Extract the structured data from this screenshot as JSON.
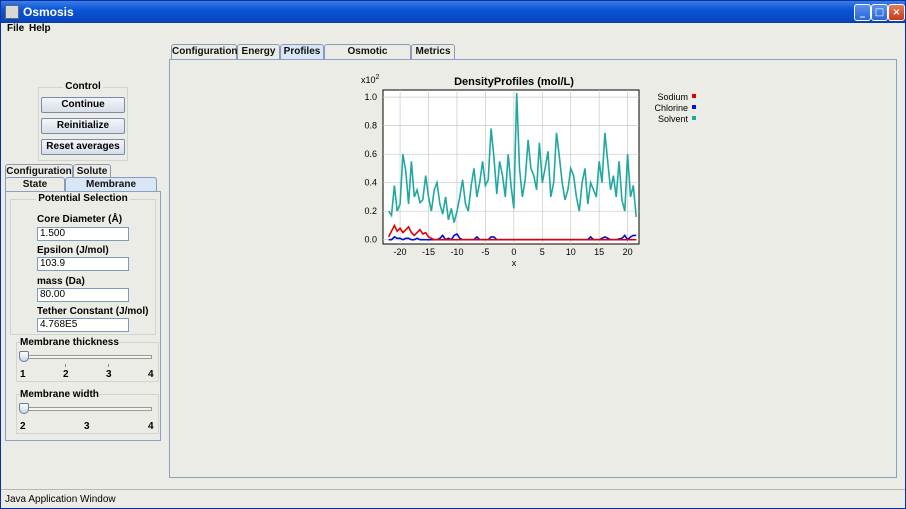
{
  "window": {
    "title": "Osmosis"
  },
  "menu": {
    "file": "File",
    "help": "Help"
  },
  "main_tabs": [
    "Configuration",
    "Energy",
    "Profiles",
    "Osmotic Pressure",
    "Metrics"
  ],
  "control": {
    "title": "Control",
    "continue": "Continue",
    "reinitialize": "Reinitialize",
    "reset_averages": "Reset averages"
  },
  "side_tabs_row1": [
    "Configuration",
    "Solute"
  ],
  "side_tabs_row2": [
    "State",
    "Membrane"
  ],
  "potential": {
    "title": "Potential Selection",
    "fields": [
      {
        "label": "Core Diameter (Å)",
        "value": "1.500"
      },
      {
        "label": "Epsilon (J/mol)",
        "value": "103.9"
      },
      {
        "label": "mass (Da)",
        "value": "80.00"
      },
      {
        "label": "Tether Constant (J/mol)",
        "value": "4.768E5"
      }
    ]
  },
  "membrane_thickness": {
    "label": "Membrane thickness",
    "ticks": [
      "1",
      "2",
      "3",
      "4"
    ],
    "value": 1
  },
  "membrane_width": {
    "label": "Membrane width",
    "ticks": [
      "2",
      "3",
      "4"
    ],
    "value": 2
  },
  "status": {
    "text": "Java Application Window"
  },
  "chart_data": {
    "type": "line",
    "title": "DensityProfiles (mol/L)",
    "xlabel": "x",
    "ylabel": "",
    "y_multiplier": "x10",
    "y_multiplier_exp": "2",
    "xlim": [
      -23,
      22
    ],
    "ylim": [
      -0.03,
      1.05
    ],
    "xticks": [
      -20,
      -15,
      -10,
      -5,
      0,
      5,
      10,
      15,
      20
    ],
    "yticks": [
      "0.0",
      "0.2",
      "0.4",
      "0.6",
      "0.8",
      "1.0"
    ],
    "grid": true,
    "legend_position": "right",
    "colors": {
      "Sodium": "#e00000",
      "Chlorine": "#0010d0",
      "Solvent": "#20a8a0"
    },
    "series": [
      {
        "name": "Sodium",
        "x": [
          -22,
          -21.5,
          -21,
          -20.5,
          -20,
          -19.5,
          -19,
          -18.5,
          -18,
          -17.5,
          -17,
          -16.5,
          -16,
          -15.5,
          -15,
          -14.5,
          -14,
          -13,
          -12,
          -10,
          -5,
          0,
          5,
          10,
          15,
          20,
          21.5
        ],
        "y": [
          0.02,
          0.06,
          0.1,
          0.06,
          0.08,
          0.05,
          0.07,
          0.09,
          0.05,
          0.03,
          0.05,
          0.07,
          0.04,
          0.05,
          0.02,
          0.01,
          0.0,
          0.0,
          0.0,
          0.0,
          0.0,
          0.0,
          0.0,
          0.0,
          0.0,
          0.0,
          0.0
        ]
      },
      {
        "name": "Chlorine",
        "x": [
          -22,
          -21.5,
          -21,
          -20.5,
          -20,
          -19.5,
          -19,
          -18.5,
          -18,
          -17.5,
          -17,
          -16.5,
          -16,
          -15,
          -14,
          -13.5,
          -13,
          -12.5,
          -12,
          -11.5,
          -11,
          -10.5,
          -10,
          -9.5,
          -9,
          -8,
          -7,
          -6.5,
          -6,
          -5.5,
          -5,
          -4.5,
          -4,
          -3.5,
          -3,
          -2,
          0,
          5,
          10,
          12,
          13,
          13.5,
          14,
          15,
          15.5,
          16,
          17,
          18,
          19,
          19.5,
          20,
          20.5,
          21,
          21.5
        ],
        "y": [
          0.0,
          0.0,
          0.02,
          0.01,
          0.01,
          0.0,
          0.01,
          0.01,
          0.0,
          0.0,
          0.01,
          0.0,
          0.0,
          0.0,
          0.0,
          0.0,
          0.01,
          0.03,
          0.0,
          0.01,
          0.0,
          0.03,
          0.04,
          0.01,
          0.0,
          0.0,
          0.0,
          0.02,
          0.0,
          0.0,
          0.0,
          0.0,
          0.02,
          0.02,
          0.0,
          0.0,
          0.0,
          0.0,
          0.0,
          0.0,
          0.0,
          0.02,
          0.0,
          0.0,
          0.01,
          0.02,
          0.0,
          0.0,
          0.01,
          0.03,
          0.0,
          0.02,
          0.03,
          0.03
        ]
      },
      {
        "name": "Solvent",
        "x": [
          -22,
          -21.5,
          -21,
          -20.5,
          -20,
          -19.5,
          -19,
          -18.5,
          -18,
          -17.5,
          -17,
          -16.5,
          -16,
          -15.5,
          -15,
          -14.5,
          -14,
          -13.5,
          -13,
          -12.5,
          -12,
          -11.5,
          -11,
          -10.5,
          -10,
          -9.5,
          -9,
          -8.5,
          -8,
          -7.5,
          -7,
          -6.5,
          -6,
          -5.5,
          -5,
          -4.5,
          -4,
          -3.5,
          -3,
          -2.5,
          -2,
          -1.5,
          -1,
          -0.5,
          0,
          0.5,
          1,
          1.5,
          2,
          2.5,
          3,
          3.5,
          4,
          4.5,
          5,
          5.5,
          6,
          6.5,
          7,
          7.5,
          8,
          8.5,
          9,
          9.5,
          10,
          10.5,
          11,
          11.5,
          12,
          12.5,
          13,
          13.5,
          14,
          14.5,
          15,
          15.5,
          16,
          16.5,
          17,
          17.5,
          18,
          18.5,
          19,
          19.5,
          20,
          20.5,
          21,
          21.5
        ],
        "y": [
          0.2,
          0.17,
          0.38,
          0.2,
          0.25,
          0.6,
          0.48,
          0.25,
          0.55,
          0.3,
          0.35,
          0.26,
          0.28,
          0.45,
          0.3,
          0.2,
          0.35,
          0.4,
          0.25,
          0.18,
          0.3,
          0.14,
          0.22,
          0.12,
          0.2,
          0.3,
          0.42,
          0.25,
          0.2,
          0.38,
          0.5,
          0.3,
          0.4,
          0.55,
          0.38,
          0.42,
          0.78,
          0.58,
          0.32,
          0.55,
          0.45,
          0.3,
          0.6,
          0.38,
          0.22,
          1.03,
          0.5,
          0.3,
          0.42,
          0.7,
          0.5,
          0.45,
          0.35,
          0.68,
          0.4,
          0.5,
          0.62,
          0.3,
          0.4,
          0.75,
          0.58,
          0.4,
          0.28,
          0.35,
          0.5,
          0.45,
          0.3,
          0.2,
          0.4,
          0.5,
          0.25,
          0.4,
          0.35,
          0.3,
          0.55,
          0.4,
          0.75,
          0.55,
          0.35,
          0.45,
          0.3,
          0.55,
          0.28,
          0.2,
          0.6,
          0.3,
          0.38,
          0.16
        ]
      }
    ]
  }
}
